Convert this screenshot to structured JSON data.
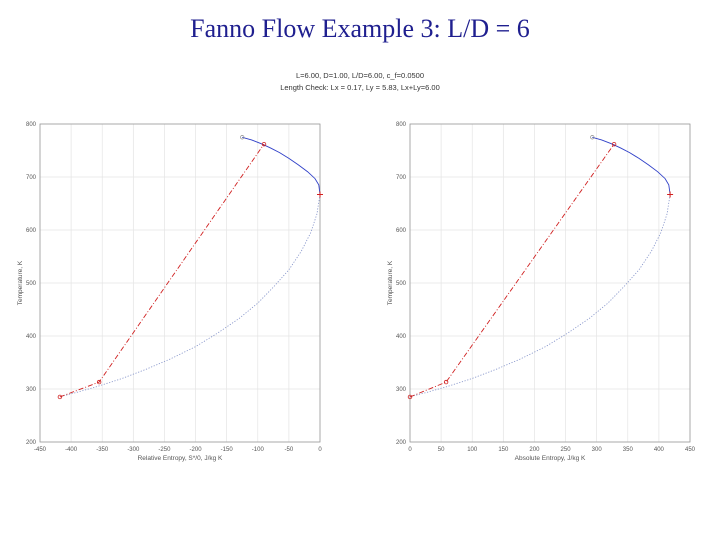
{
  "slide": {
    "title": "Fanno Flow Example 3: L/D = 6"
  },
  "figure": {
    "header_line1": "L=6.00, D=1.00, L/D=6.00, c_f=0.0500",
    "header_line2": "Length Check: Lx = 0.17, Ly = 5.83, Lx+Ly=6.00"
  },
  "colors": {
    "fanno_upper": "#3040c8",
    "fanno_lower": "#8090c8",
    "process_line": "#d02020",
    "grid": "#e4e4e4",
    "axis": "#999999"
  },
  "chart_data": [
    {
      "type": "line",
      "xlabel": "Relative Entropy, S*/0, J/kg K",
      "ylabel": "Temperature, K",
      "xlim": [
        -450,
        0
      ],
      "ylim": [
        200,
        800
      ],
      "xticks": [
        -450,
        -400,
        -350,
        -300,
        -250,
        -200,
        -150,
        -100,
        -50,
        0
      ],
      "yticks": [
        200,
        300,
        400,
        500,
        600,
        700,
        800
      ],
      "grid": true,
      "series": [
        {
          "style": "fanno-subsonic",
          "x": [
            -125,
            -110,
            -95,
            -80,
            -65,
            -50,
            -35,
            -20,
            -8,
            -2,
            0
          ],
          "y": [
            775,
            770,
            763,
            755,
            746,
            735,
            723,
            710,
            697,
            685,
            667
          ]
        },
        {
          "style": "fanno-supersonic",
          "x": [
            0,
            -5,
            -15,
            -30,
            -50,
            -75,
            -100,
            -130,
            -165,
            -200,
            -240,
            -280,
            -320,
            -360,
            -390,
            -410,
            -418
          ],
          "y": [
            667,
            630,
            595,
            560,
            525,
            492,
            462,
            433,
            405,
            380,
            357,
            337,
            319,
            304,
            294,
            288,
            285
          ]
        },
        {
          "style": "process",
          "x": [
            -418,
            -355,
            -90
          ],
          "y": [
            285,
            313,
            762
          ]
        }
      ],
      "markers": [
        {
          "x": -125,
          "y": 775,
          "symbol": "circle"
        },
        {
          "x": -90,
          "y": 762,
          "symbol": "circle"
        },
        {
          "x": -355,
          "y": 313,
          "symbol": "circle"
        },
        {
          "x": -418,
          "y": 285,
          "symbol": "circle"
        },
        {
          "x": 0,
          "y": 667,
          "symbol": "plus"
        }
      ]
    },
    {
      "type": "line",
      "xlabel": "Absolute Entropy, J/kg K",
      "ylabel": "Temperature, K",
      "xlim": [
        0,
        450
      ],
      "ylim": [
        200,
        800
      ],
      "xticks": [
        0,
        50,
        100,
        150,
        200,
        250,
        300,
        350,
        400,
        450
      ],
      "yticks": [
        200,
        300,
        400,
        500,
        600,
        700,
        800
      ],
      "grid": true,
      "series": [
        {
          "style": "fanno-subsonic",
          "x": [
            293,
            308,
            323,
            338,
            353,
            368,
            383,
            398,
            410,
            416,
            418
          ],
          "y": [
            775,
            770,
            763,
            755,
            746,
            735,
            723,
            710,
            697,
            685,
            667
          ]
        },
        {
          "style": "fanno-supersonic",
          "x": [
            418,
            413,
            403,
            388,
            368,
            343,
            318,
            288,
            253,
            218,
            178,
            138,
            98,
            58,
            28,
            8,
            0
          ],
          "y": [
            667,
            630,
            595,
            560,
            525,
            492,
            462,
            433,
            405,
            380,
            357,
            337,
            319,
            304,
            294,
            288,
            285
          ]
        },
        {
          "style": "process",
          "x": [
            0,
            58,
            328
          ],
          "y": [
            285,
            313,
            762
          ]
        }
      ],
      "markers": [
        {
          "x": 293,
          "y": 775,
          "symbol": "circle"
        },
        {
          "x": 328,
          "y": 762,
          "symbol": "circle"
        },
        {
          "x": 58,
          "y": 313,
          "symbol": "circle"
        },
        {
          "x": 0,
          "y": 285,
          "symbol": "circle"
        },
        {
          "x": 418,
          "y": 667,
          "symbol": "plus"
        }
      ]
    }
  ]
}
